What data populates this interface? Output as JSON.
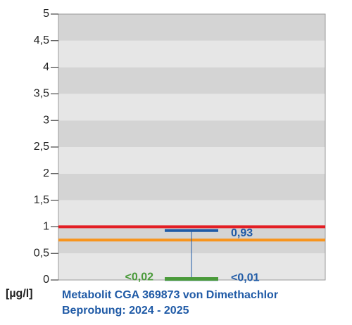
{
  "chart_data": {
    "type": "range",
    "ylim": [
      0,
      5
    ],
    "yticks": [
      0,
      {
        "value": 0.5,
        "label": "0,5"
      },
      1,
      {
        "value": 1.5,
        "label": "1,5"
      },
      2,
      {
        "value": 2.5,
        "label": "2,5"
      },
      3,
      {
        "value": 3.5,
        "label": "3,5"
      },
      4,
      {
        "value": 4.5,
        "label": "4,5"
      },
      5
    ],
    "y_label": "[µg/l]",
    "title": "Metabolit CGA 369873 von Dimethachlor",
    "subtitle": "Beprobung: 2024 - 2025",
    "max": {
      "value": 0.93,
      "label": "0,93",
      "color": "#1f5aa6"
    },
    "min": {
      "value": 0.01,
      "label": "<0,01",
      "color": "#1f5aa6"
    },
    "median": {
      "value": 0.02,
      "label": "<0,02",
      "color": "#4a9a3a"
    },
    "reference_lines": [
      {
        "value": 1,
        "color": "#e31e24"
      },
      {
        "value": 0.75,
        "color": "#f7941d"
      }
    ],
    "band_colors": [
      "#e6e6e6",
      "#d4d4d4"
    ]
  }
}
